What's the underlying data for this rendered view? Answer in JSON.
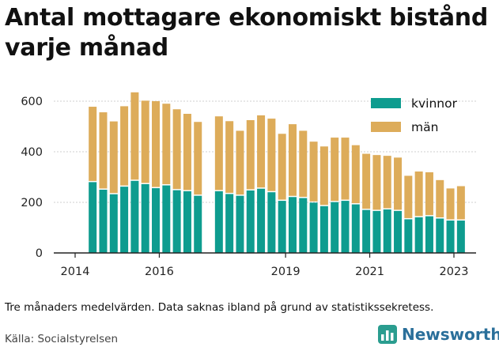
{
  "title": "Antal mottagare ekonomiskt bistånd varje månad",
  "caption": "Tre månaders medelvärden. Data saknas ibland på grund av statistikssekretess.",
  "source": "Källa: Socialstyrelsen",
  "brand": "Newsworthy",
  "colors": {
    "kvinnor": "#0e9c8f",
    "man": "#ddac5a",
    "axis": "#222222",
    "grid": "#cfcfcf"
  },
  "chart_data": {
    "type": "bar",
    "stacked": true,
    "ylim": [
      0,
      650
    ],
    "y_ticks": [
      0,
      200,
      400,
      600
    ],
    "x_ticks": [
      "2014",
      "2016",
      "2019",
      "2021",
      "2023"
    ],
    "legend": {
      "placement": "top-right",
      "entries": [
        "kvinnor",
        "män"
      ]
    },
    "categories": [
      "2014-06",
      "2014-09",
      "2014-12",
      "2015-03",
      "2015-06",
      "2015-09",
      "2015-12",
      "2016-03",
      "2016-06",
      "2016-09",
      "2016-12",
      "2017-06",
      "2017-09",
      "2017-12",
      "2018-03",
      "2018-06",
      "2018-09",
      "2018-12",
      "2019-03",
      "2019-06",
      "2019-09",
      "2019-12",
      "2020-03",
      "2020-06",
      "2020-09",
      "2020-12",
      "2021-03",
      "2021-06",
      "2021-09",
      "2021-12",
      "2022-03",
      "2022-06",
      "2022-09",
      "2022-12",
      "2023-03"
    ],
    "series": [
      {
        "name": "kvinnor",
        "values": [
          280,
          250,
          232,
          262,
          285,
          272,
          256,
          267,
          248,
          244,
          226,
          244,
          233,
          226,
          247,
          254,
          240,
          206,
          221,
          217,
          199,
          185,
          201,
          206,
          192,
          170,
          166,
          172,
          166,
          133,
          141,
          145,
          136,
          128,
          128
        ]
      },
      {
        "name": "män",
        "values": [
          298,
          306,
          288,
          318,
          350,
          330,
          344,
          323,
          320,
          306,
          292,
          296,
          288,
          257,
          278,
          290,
          291,
          265,
          288,
          266,
          241,
          236,
          255,
          250,
          234,
          222,
          221,
          212,
          211,
          172,
          181,
          174,
          152,
          127,
          136
        ]
      }
    ]
  }
}
